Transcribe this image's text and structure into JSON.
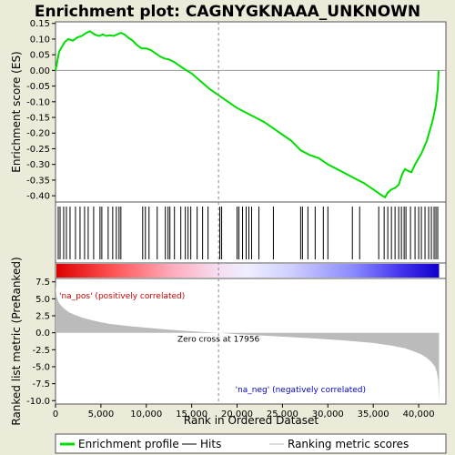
{
  "chart_data": {
    "type": "line",
    "title": "Enrichment plot: CAGNYGKNAAA_UNKNOWN",
    "xlabel": "Rank in Ordered Dataset",
    "es_ylabel": "Enrichment score (ES)",
    "metric_ylabel": "Ranked list metric (PreRanked)",
    "xlim": [
      0,
      43000
    ],
    "x_ticks": [
      0,
      5000,
      10000,
      15000,
      20000,
      25000,
      30000,
      35000,
      40000
    ],
    "x_tick_labels": [
      "0",
      "5,000",
      "10,000",
      "15,000",
      "20,000",
      "25,000",
      "30,000",
      "35,000",
      "40,000"
    ],
    "es_ylim": [
      -0.42,
      0.155
    ],
    "es_ticks": [
      0.15,
      0.1,
      0.05,
      0.0,
      -0.05,
      -0.1,
      -0.15,
      -0.2,
      -0.25,
      -0.3,
      -0.35,
      -0.4
    ],
    "es_tick_labels": [
      "0.15",
      "0.10",
      "0.05",
      "0.00",
      "-0.05",
      "-0.10",
      "-0.15",
      "-0.20",
      "-0.25",
      "-0.30",
      "-0.35",
      "-0.40"
    ],
    "metric_ylim": [
      -10.5,
      8.0
    ],
    "metric_ticks": [
      7.5,
      5.0,
      2.5,
      0.0,
      -2.5,
      -5.0,
      -7.5,
      -10.0
    ],
    "metric_tick_labels": [
      "7.5",
      "5.0",
      "2.5",
      "0.0",
      "-2.5",
      "-5.0",
      "-7.5",
      "-10.0"
    ],
    "grid": false,
    "es_series": {
      "name": "Enrichment profile",
      "color": "#00dd00",
      "x": [
        0,
        200,
        400,
        700,
        1000,
        1400,
        1900,
        2400,
        2900,
        3400,
        3800,
        4300,
        4800,
        5200,
        5600,
        6000,
        6400,
        6800,
        7200,
        7600,
        8000,
        8500,
        9000,
        9500,
        10000,
        10500,
        11000,
        11500,
        12000,
        12500,
        13000,
        13500,
        14000,
        15000,
        16000,
        17000,
        18000,
        19000,
        20000,
        21000,
        22000,
        23000,
        24000,
        25000,
        26000,
        27000,
        28000,
        29000,
        30000,
        31000,
        32000,
        33000,
        34000,
        35000,
        35500,
        36000,
        36300,
        36600,
        37000,
        37400,
        37800,
        38200,
        38500,
        38800,
        39200,
        39600,
        40000,
        40300,
        40600,
        40900,
        41200,
        41500,
        41700,
        41900,
        42100,
        42200
      ],
      "y": [
        0.0,
        0.03,
        0.06,
        0.075,
        0.09,
        0.1,
        0.095,
        0.105,
        0.11,
        0.12,
        0.125,
        0.115,
        0.11,
        0.115,
        0.11,
        0.112,
        0.11,
        0.115,
        0.12,
        0.115,
        0.105,
        0.095,
        0.08,
        0.07,
        0.07,
        0.065,
        0.055,
        0.045,
        0.038,
        0.035,
        0.028,
        0.018,
        0.008,
        -0.01,
        -0.035,
        -0.06,
        -0.08,
        -0.1,
        -0.12,
        -0.135,
        -0.15,
        -0.165,
        -0.185,
        -0.205,
        -0.225,
        -0.255,
        -0.27,
        -0.28,
        -0.3,
        -0.315,
        -0.33,
        -0.345,
        -0.36,
        -0.38,
        -0.39,
        -0.4,
        -0.405,
        -0.39,
        -0.38,
        -0.375,
        -0.365,
        -0.33,
        -0.315,
        -0.32,
        -0.325,
        -0.3,
        -0.28,
        -0.265,
        -0.245,
        -0.225,
        -0.195,
        -0.165,
        -0.14,
        -0.11,
        -0.06,
        0.0
      ]
    },
    "hits": [
      300,
      500,
      900,
      1200,
      1600,
      2200,
      2700,
      3200,
      3600,
      4200,
      4900,
      5100,
      5800,
      6300,
      6700,
      7000,
      7200,
      9600,
      9900,
      10300,
      11200,
      12100,
      12400,
      12600,
      13100,
      13800,
      14300,
      14600,
      14900,
      15600,
      16200,
      16800,
      18100,
      18300,
      20000,
      20200,
      20600,
      21000,
      21300,
      21600,
      22400,
      24000,
      27000,
      27200,
      27800,
      28600,
      29500,
      30000,
      32700,
      33500,
      35600,
      36200,
      36600,
      37000,
      37400,
      37800,
      38100,
      38400,
      38600,
      39100,
      39600,
      40000,
      40300,
      40700,
      41100,
      41400,
      41700,
      41900,
      42100
    ],
    "zero_cross_label": "Zero cross at 17956",
    "zero_cross": 17956,
    "pos_label": "'na_pos' (positively correlated)",
    "neg_label": "'na_neg' (negatively correlated)",
    "metric_profile": {
      "x": [
        0,
        100,
        300,
        600,
        1000,
        1500,
        2000,
        3000,
        4000,
        5000,
        6000,
        8000,
        10000,
        12000,
        14000,
        16000,
        17956,
        20000,
        24000,
        28000,
        32000,
        35000,
        37000,
        38500,
        39500,
        40300,
        40900,
        41400,
        41800,
        42000,
        42150,
        42250
      ],
      "y": [
        7.2,
        5.5,
        4.6,
        4.0,
        3.5,
        3.0,
        2.7,
        2.2,
        1.85,
        1.55,
        1.3,
        1.0,
        0.75,
        0.5,
        0.3,
        0.15,
        0.0,
        -0.2,
        -0.5,
        -0.8,
        -1.15,
        -1.5,
        -1.9,
        -2.3,
        -2.75,
        -3.2,
        -3.7,
        -4.3,
        -5.0,
        -5.8,
        -7.0,
        -10.0
      ]
    },
    "legend": [
      {
        "label": "Enrichment profile",
        "color": "#00dd00"
      },
      {
        "label": "Hits",
        "color": "#000000"
      },
      {
        "label": "Ranking metric scores",
        "color": "#bbbbbb"
      }
    ]
  }
}
